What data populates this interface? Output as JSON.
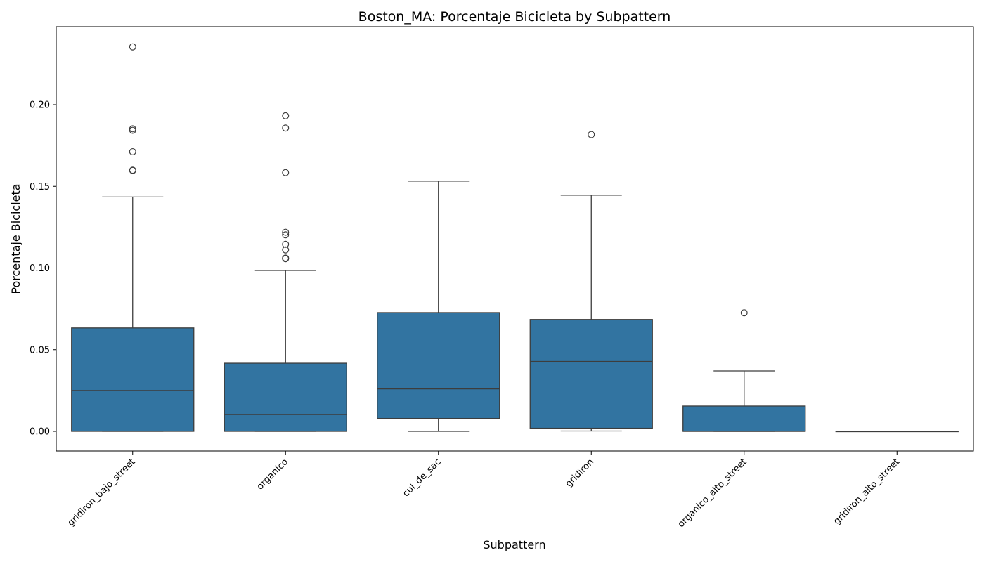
{
  "chart_data": {
    "type": "box",
    "title": "Boston_MA: Porcentaje Bicicleta by Subpattern",
    "xlabel": "Subpattern",
    "ylabel": "Porcentaje Bicicleta",
    "ylim": [
      -0.012,
      0.248
    ],
    "yticks": [
      "0.00",
      "0.05",
      "0.10",
      "0.15",
      "0.20"
    ],
    "grid": false,
    "box_color": "#3274a1",
    "line_color": "#3d3d3d",
    "categories": [
      "gridiron_bajo_street",
      "organico",
      "cul_de_sac",
      "gridiron",
      "organico_alto_street",
      "gridiron_alto_street"
    ],
    "boxes": [
      {
        "label": "gridiron_bajo_street",
        "whisker_low": 0.0,
        "q1": 0.0,
        "median": 0.025,
        "q3": 0.0633,
        "whisker_high": 0.1435,
        "outliers": [
          0.1597,
          0.1599,
          0.1712,
          0.1843,
          0.1852,
          0.2354
        ]
      },
      {
        "label": "organico",
        "whisker_low": 0.0,
        "q1": 0.0,
        "median": 0.0103,
        "q3": 0.0417,
        "whisker_high": 0.0985,
        "outliers": [
          0.1057,
          0.1061,
          0.1111,
          0.1145,
          0.1203,
          0.1219,
          0.1584,
          0.1857,
          0.1932
        ]
      },
      {
        "label": "cul_de_sac",
        "whisker_low": 0.0,
        "q1": 0.0079,
        "median": 0.026,
        "q3": 0.0727,
        "whisker_high": 0.1532,
        "outliers": []
      },
      {
        "label": "gridiron",
        "whisker_low": 0.0002,
        "q1": 0.0019,
        "median": 0.0428,
        "q3": 0.0685,
        "whisker_high": 0.1446,
        "outliers": [
          0.1817
        ]
      },
      {
        "label": "organico_alto_street",
        "whisker_low": 0.0,
        "q1": 0.0,
        "median": 0.0,
        "q3": 0.0155,
        "whisker_high": 0.037,
        "outliers": [
          0.0726
        ]
      },
      {
        "label": "gridiron_alto_street",
        "whisker_low": 0.0,
        "q1": 0.0,
        "median": 0.0,
        "q3": 0.0,
        "whisker_high": 0.0,
        "outliers": []
      }
    ]
  }
}
